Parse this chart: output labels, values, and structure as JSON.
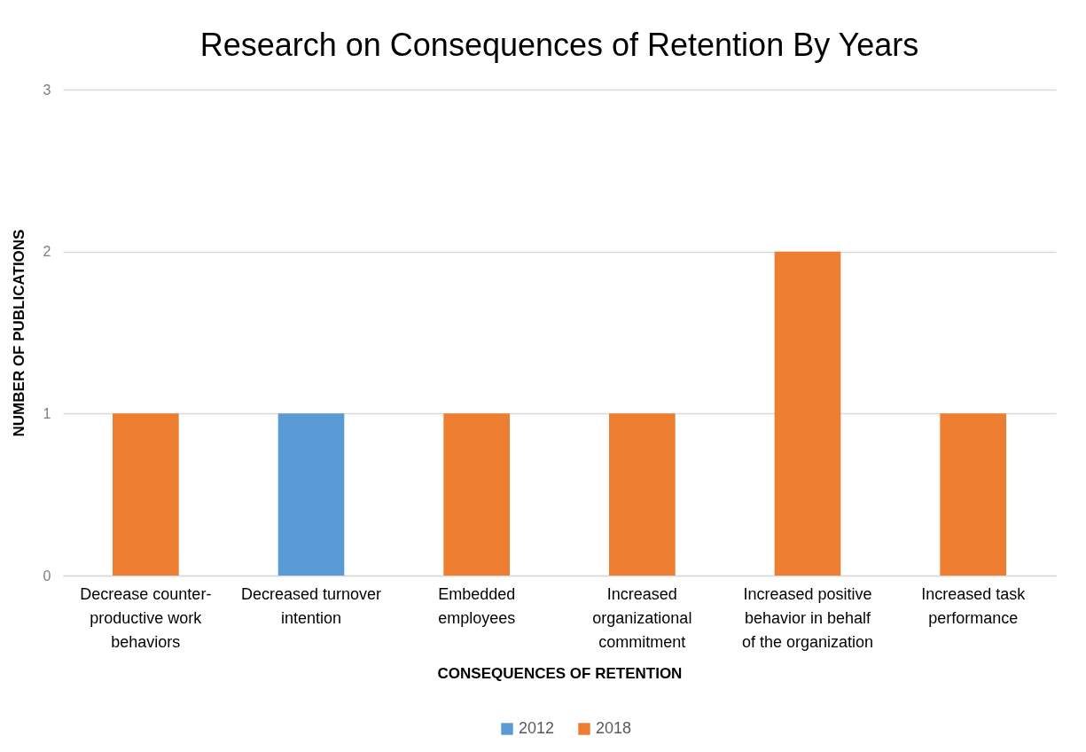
{
  "chart_data": {
    "type": "bar",
    "title": "Research on Consequences of Retention By Years",
    "xlabel": "CONSEQUENCES OF RETENTION",
    "ylabel": "NUMBER OF PUBLICATIONS",
    "categories": [
      "Decrease counter-productive work behaviors",
      "Decreased turnover intention",
      "Embedded employees",
      "Increased organizational commitment",
      "Increased positive behavior in behalf of the organization",
      "Increased task performance"
    ],
    "series": [
      {
        "name": "2012",
        "color": "#5b9bd5",
        "values": [
          null,
          1,
          null,
          null,
          null,
          null
        ]
      },
      {
        "name": "2018",
        "color": "#ed7d31",
        "values": [
          1,
          null,
          1,
          1,
          2,
          1
        ]
      }
    ],
    "stacked": true,
    "ylim": [
      0,
      3
    ],
    "yticks": [
      0,
      1,
      2,
      3
    ],
    "grid": "y",
    "legend": "bottom"
  }
}
